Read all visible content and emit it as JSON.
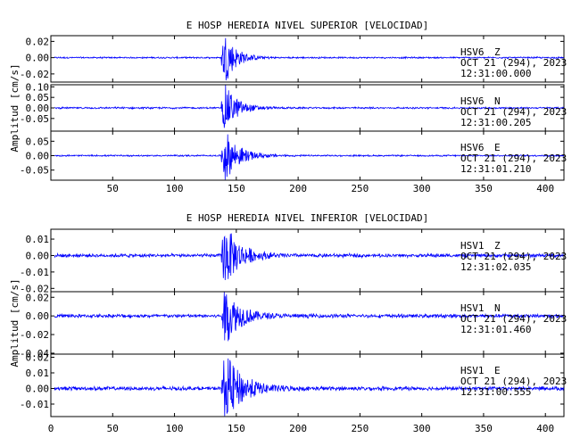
{
  "chart_data": [
    {
      "type": "line",
      "title": "E HOSP HEREDIA NIVEL SUPERIOR [VELOCIDAD]",
      "ylabel": "Amplitud [cm/s]",
      "xlabel": "",
      "xlim": [
        0,
        415
      ],
      "xticks": [
        50,
        100,
        150,
        200,
        250,
        300,
        350,
        400
      ],
      "grid": false,
      "line_color": "#0000ff",
      "traces": [
        {
          "station": "HSV6",
          "component": "Z",
          "date": "OCT 21 (294), 2023",
          "time": "12:31:00.000",
          "ylim": [
            -0.03,
            0.027
          ],
          "yticks": [
            "0.02",
            "0.00",
            "-0.02"
          ],
          "onset_s": 138,
          "peak": 0.025,
          "noise": 0.0007,
          "decay_s": 9
        },
        {
          "station": "HSV6",
          "component": "N",
          "date": "OCT 21 (294), 2023",
          "time": "12:31:00.205",
          "ylim": [
            -0.11,
            0.11
          ],
          "yticks": [
            "0.10",
            "0.05",
            "0.00",
            "-0.05"
          ],
          "onset_s": 138,
          "peak": 0.09,
          "noise": 0.003,
          "decay_s": 10
        },
        {
          "station": "HSV6",
          "component": "E",
          "date": "OCT 21 (294), 2023",
          "time": "12:31:01.210",
          "ylim": [
            -0.085,
            0.085
          ],
          "yticks": [
            "0.05",
            "0.00",
            "-0.05"
          ],
          "onset_s": 138,
          "peak": 0.075,
          "noise": 0.002,
          "decay_s": 11
        }
      ]
    },
    {
      "type": "line",
      "title": "E HOSP HEREDIA NIVEL INFERIOR [VELOCIDAD]",
      "ylabel": "Amplitud [cm/s]",
      "xlabel": "",
      "xlim": [
        0,
        415
      ],
      "xticks": [
        0,
        50,
        100,
        150,
        200,
        250,
        300,
        350,
        400
      ],
      "grid": false,
      "line_color": "#0000ff",
      "traces": [
        {
          "station": "HSV1",
          "component": "Z",
          "date": "OCT 21 (294), 2023",
          "time": "12:31:02.035",
          "ylim": [
            -0.022,
            0.016
          ],
          "yticks": [
            "0.01",
            "0.00",
            "-0.01",
            "-0.02"
          ],
          "onset_s": 138,
          "peak": 0.016,
          "noise": 0.0008,
          "decay_s": 12
        },
        {
          "station": "HSV1",
          "component": "N",
          "date": "OCT 21 (294), 2023",
          "time": "12:31:01.460",
          "ylim": [
            -0.041,
            0.026
          ],
          "yticks": [
            "0.02",
            "0.00",
            "-0.02",
            "-0.04"
          ],
          "onset_s": 138,
          "peak": 0.026,
          "noise": 0.0015,
          "decay_s": 12
        },
        {
          "station": "HSV1",
          "component": "E",
          "date": "OCT 21 (294), 2023",
          "time": "12:31:00.555",
          "ylim": [
            -0.018,
            0.022
          ],
          "yticks": [
            "0.02",
            "0.01",
            "0.00",
            "-0.01"
          ],
          "onset_s": 138,
          "peak": 0.02,
          "noise": 0.0009,
          "decay_s": 14
        }
      ]
    }
  ]
}
